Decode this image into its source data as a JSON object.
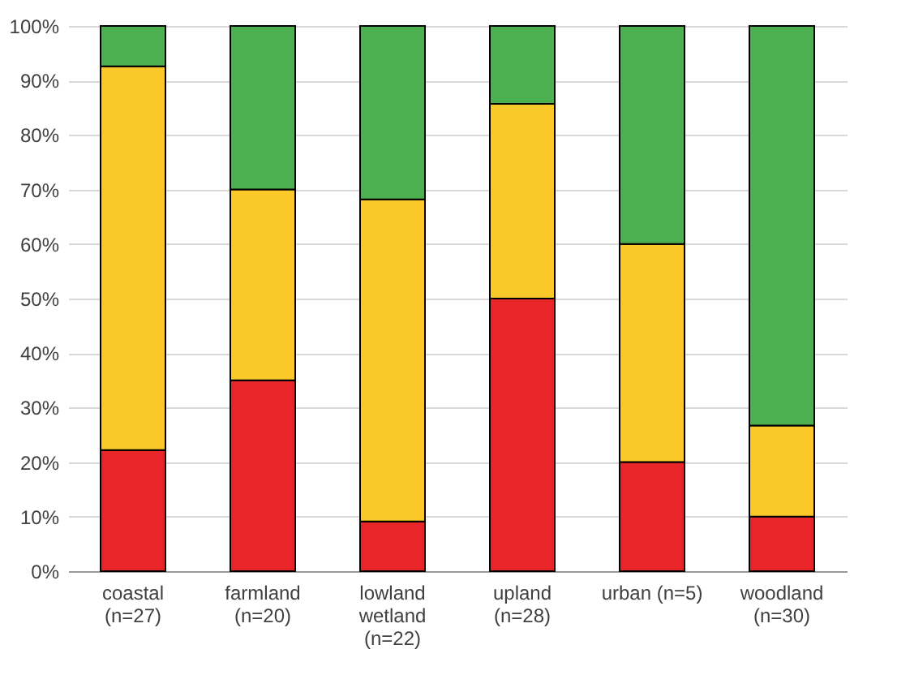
{
  "chart_data": {
    "type": "bar",
    "stacked": true,
    "categories": [
      "coastal (n=27)",
      "farmland (n=20)",
      "lowland wetland (n=22)",
      "upland (n=28)",
      "urban (n=5)",
      "woodland (n=30)"
    ],
    "series": [
      {
        "color": "#e8262a",
        "values": [
          22.2,
          35,
          9.1,
          50,
          20,
          10
        ]
      },
      {
        "color": "#fbc829",
        "values": [
          70.4,
          35,
          59.1,
          35.7,
          40,
          16.7
        ]
      },
      {
        "color": "#4cb050",
        "values": [
          7.4,
          30,
          31.8,
          14.3,
          40,
          73.3
        ]
      }
    ],
    "ylim": [
      0,
      100
    ],
    "yticks": [
      {
        "value": 0,
        "label": "0%"
      },
      {
        "value": 10,
        "label": "10%"
      },
      {
        "value": 20,
        "label": "20%"
      },
      {
        "value": 30,
        "label": "30%"
      },
      {
        "value": 40,
        "label": "40%"
      },
      {
        "value": 50,
        "label": "50%"
      },
      {
        "value": 60,
        "label": "60%"
      },
      {
        "value": 70,
        "label": "70%"
      },
      {
        "value": 80,
        "label": "80%"
      },
      {
        "value": 90,
        "label": "90%"
      },
      {
        "value": 100,
        "label": "100%"
      }
    ],
    "grid": "y"
  }
}
